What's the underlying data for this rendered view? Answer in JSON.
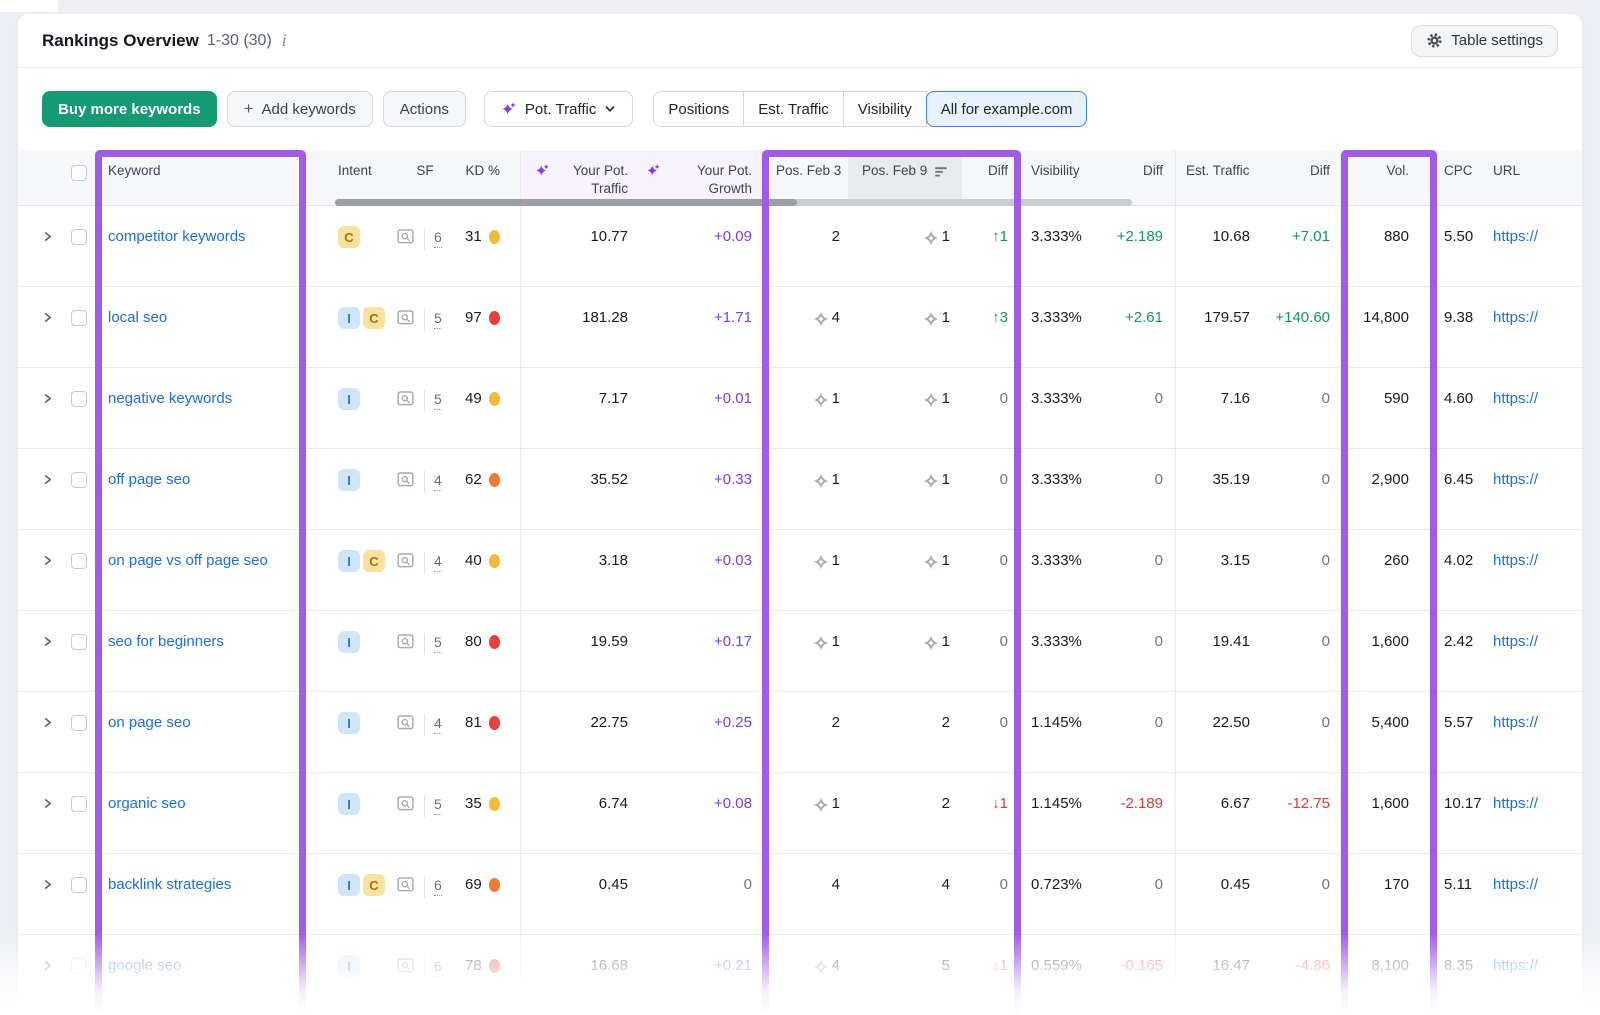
{
  "header": {
    "title": "Rankings Overview",
    "range": "1-30 (30)",
    "info_icon": "i",
    "table_settings_label": "Table settings"
  },
  "toolbar": {
    "buy_label": "Buy more keywords",
    "add_label": "Add keywords",
    "actions_label": "Actions",
    "metric_dropdown_label": "Pot. Traffic",
    "segments": [
      "Positions",
      "Est. Traffic",
      "Visibility",
      "All for example.com"
    ],
    "active_segment": "All for example.com"
  },
  "colors": {
    "buy_green": "#169a74",
    "active_filter_blue": "#3c86ea",
    "annotation_purple": "#a15ce6",
    "link_blue": "#1d6ee0",
    "positive_green": "#13965e",
    "negative_red": "#e03a32",
    "growth_purple": "#7e3ce4",
    "kd": {
      "yellow": "#f2bc3a",
      "orange": "#f07c34",
      "red": "#e8403a"
    },
    "intent": {
      "I": {
        "bg": "#cfe5fa",
        "fg": "#2f78ca"
      },
      "C": {
        "bg": "#f8e2a0",
        "fg": "#aa7108"
      }
    }
  },
  "table": {
    "headers": {
      "keyword": "Keyword",
      "intent": "Intent",
      "sf": "SF",
      "kd": "KD %",
      "pot_traffic": "Your Pot. Traffic",
      "pot_growth": "Your Pot. Growth",
      "pos_feb3": "Pos. Feb 3",
      "pos_feb9": "Pos. Feb 9",
      "diff": "Diff",
      "visibility": "Visibility",
      "visibility_diff": "Diff",
      "est_traffic": "Est. Traffic",
      "est_traffic_diff": "Diff",
      "volume": "Vol.",
      "cpc": "CPC",
      "url": "URL"
    },
    "rows": [
      {
        "keyword": "competitor keywords",
        "intents": [
          "C"
        ],
        "sf": "6",
        "kd": "31",
        "kd_color": "yellow",
        "pot_traffic": "10.77",
        "pot_growth": "+0.09",
        "pos_feb3": {
          "sf_icon": false,
          "value": "2"
        },
        "pos_feb9": {
          "sf_icon": true,
          "value": "1"
        },
        "pos_diff": {
          "dir": "up",
          "value": "1"
        },
        "visibility": "3.333%",
        "visibility_diff": "+2.189",
        "est_traffic": "10.68",
        "est_traffic_diff": "+7.01",
        "volume": "880",
        "cpc": "5.50",
        "url": "https://",
        "faded": false
      },
      {
        "keyword": "local seo",
        "intents": [
          "I",
          "C"
        ],
        "sf": "5",
        "kd": "97",
        "kd_color": "red",
        "pot_traffic": "181.28",
        "pot_growth": "+1.71",
        "pos_feb3": {
          "sf_icon": true,
          "value": "4"
        },
        "pos_feb9": {
          "sf_icon": true,
          "value": "1"
        },
        "pos_diff": {
          "dir": "up",
          "value": "3"
        },
        "visibility": "3.333%",
        "visibility_diff": "+2.61",
        "est_traffic": "179.57",
        "est_traffic_diff": "+140.60",
        "volume": "14,800",
        "cpc": "9.38",
        "url": "https://",
        "faded": false
      },
      {
        "keyword": "negative keywords",
        "intents": [
          "I"
        ],
        "sf": "5",
        "kd": "49",
        "kd_color": "yellow",
        "pot_traffic": "7.17",
        "pot_growth": "+0.01",
        "pos_feb3": {
          "sf_icon": true,
          "value": "1"
        },
        "pos_feb9": {
          "sf_icon": true,
          "value": "1"
        },
        "pos_diff": {
          "dir": "none",
          "value": "0"
        },
        "visibility": "3.333%",
        "visibility_diff": "0",
        "est_traffic": "7.16",
        "est_traffic_diff": "0",
        "volume": "590",
        "cpc": "4.60",
        "url": "https://",
        "faded": false
      },
      {
        "keyword": "off page seo",
        "intents": [
          "I"
        ],
        "sf": "4",
        "kd": "62",
        "kd_color": "orange",
        "pot_traffic": "35.52",
        "pot_growth": "+0.33",
        "pos_feb3": {
          "sf_icon": true,
          "value": "1"
        },
        "pos_feb9": {
          "sf_icon": true,
          "value": "1"
        },
        "pos_diff": {
          "dir": "none",
          "value": "0"
        },
        "visibility": "3.333%",
        "visibility_diff": "0",
        "est_traffic": "35.19",
        "est_traffic_diff": "0",
        "volume": "2,900",
        "cpc": "6.45",
        "url": "https://",
        "faded": false
      },
      {
        "keyword": "on page vs off page seo",
        "intents": [
          "I",
          "C"
        ],
        "sf": "4",
        "kd": "40",
        "kd_color": "yellow",
        "pot_traffic": "3.18",
        "pot_growth": "+0.03",
        "pos_feb3": {
          "sf_icon": true,
          "value": "1"
        },
        "pos_feb9": {
          "sf_icon": true,
          "value": "1"
        },
        "pos_diff": {
          "dir": "none",
          "value": "0"
        },
        "visibility": "3.333%",
        "visibility_diff": "0",
        "est_traffic": "3.15",
        "est_traffic_diff": "0",
        "volume": "260",
        "cpc": "4.02",
        "url": "https://",
        "faded": false
      },
      {
        "keyword": "seo for beginners",
        "intents": [
          "I"
        ],
        "sf": "5",
        "kd": "80",
        "kd_color": "red",
        "pot_traffic": "19.59",
        "pot_growth": "+0.17",
        "pos_feb3": {
          "sf_icon": true,
          "value": "1"
        },
        "pos_feb9": {
          "sf_icon": true,
          "value": "1"
        },
        "pos_diff": {
          "dir": "none",
          "value": "0"
        },
        "visibility": "3.333%",
        "visibility_diff": "0",
        "est_traffic": "19.41",
        "est_traffic_diff": "0",
        "volume": "1,600",
        "cpc": "2.42",
        "url": "https://",
        "faded": false
      },
      {
        "keyword": "on page seo",
        "intents": [
          "I"
        ],
        "sf": "4",
        "kd": "81",
        "kd_color": "red",
        "pot_traffic": "22.75",
        "pot_growth": "+0.25",
        "pos_feb3": {
          "sf_icon": false,
          "value": "2"
        },
        "pos_feb9": {
          "sf_icon": false,
          "value": "2"
        },
        "pos_diff": {
          "dir": "none",
          "value": "0"
        },
        "visibility": "1.145%",
        "visibility_diff": "0",
        "est_traffic": "22.50",
        "est_traffic_diff": "0",
        "volume": "5,400",
        "cpc": "5.57",
        "url": "https://",
        "faded": false
      },
      {
        "keyword": "organic seo",
        "intents": [
          "I"
        ],
        "sf": "5",
        "kd": "35",
        "kd_color": "yellow",
        "pot_traffic": "6.74",
        "pot_growth": "+0.08",
        "pos_feb3": {
          "sf_icon": true,
          "value": "1"
        },
        "pos_feb9": {
          "sf_icon": false,
          "value": "2"
        },
        "pos_diff": {
          "dir": "down",
          "value": "1"
        },
        "visibility": "1.145%",
        "visibility_diff": "-2.189",
        "est_traffic": "6.67",
        "est_traffic_diff": "-12.75",
        "volume": "1,600",
        "cpc": "10.17",
        "url": "https://",
        "faded": false
      },
      {
        "keyword": "backlink strategies",
        "intents": [
          "I",
          "C"
        ],
        "sf": "6",
        "kd": "69",
        "kd_color": "orange",
        "pot_traffic": "0.45",
        "pot_growth": "0",
        "pos_feb3": {
          "sf_icon": false,
          "value": "4"
        },
        "pos_feb9": {
          "sf_icon": false,
          "value": "4"
        },
        "pos_diff": {
          "dir": "none",
          "value": "0"
        },
        "visibility": "0.723%",
        "visibility_diff": "0",
        "est_traffic": "0.45",
        "est_traffic_diff": "0",
        "volume": "170",
        "cpc": "5.11",
        "url": "https://",
        "faded": false
      },
      {
        "keyword": "google seo",
        "intents": [
          "I"
        ],
        "sf": "6",
        "kd": "78",
        "kd_color": "red",
        "pot_traffic": "16.68",
        "pot_growth": "+0.21",
        "pos_feb3": {
          "sf_icon": true,
          "value": "4"
        },
        "pos_feb9": {
          "sf_icon": false,
          "value": "5"
        },
        "pos_diff": {
          "dir": "down",
          "value": "1"
        },
        "visibility": "0.559%",
        "visibility_diff": "-0.165",
        "est_traffic": "16.47",
        "est_traffic_diff": "-4.86",
        "volume": "8,100",
        "cpc": "8.35",
        "url": "https://",
        "faded": true
      }
    ]
  }
}
